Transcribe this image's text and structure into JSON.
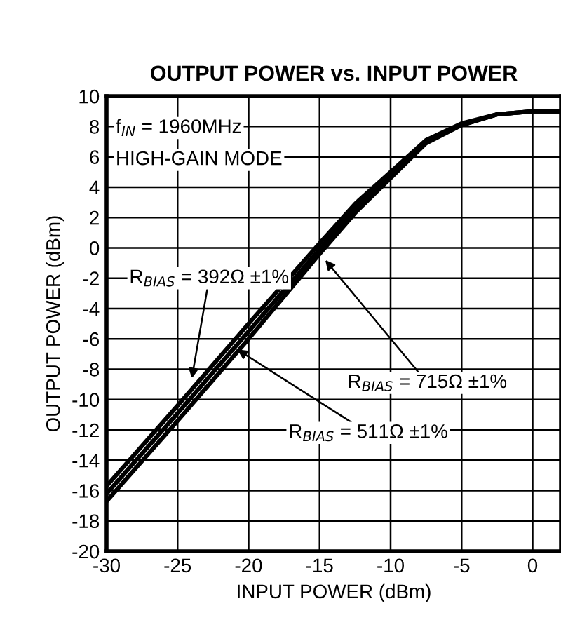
{
  "chart_data": {
    "type": "line",
    "title": "OUTPUT POWER vs. INPUT POWER",
    "xlabel": "INPUT POWER (dBm)",
    "ylabel": "OUTPUT POWER (dBm)",
    "x": [
      -30,
      -25,
      -20,
      -15,
      -12.5,
      -10,
      -7.5,
      -5,
      -2.5,
      0,
      2
    ],
    "series": [
      {
        "color": "#000000",
        "values": [
          -15.7,
          -10.4,
          -5.0,
          0.3,
          2.9,
          5.0,
          7.1,
          8.2,
          8.8,
          9.0,
          9.0
        ]
      },
      {
        "color": "#000000",
        "values": [
          -16.2,
          -10.9,
          -5.5,
          -0.1,
          2.6,
          4.8,
          7.0,
          8.1,
          8.8,
          9.0,
          9.0
        ]
      },
      {
        "color": "#000000",
        "values": [
          -16.7,
          -11.4,
          -6.0,
          -0.4,
          2.3,
          4.6,
          6.9,
          8.1,
          8.8,
          9.0,
          9.0
        ]
      }
    ],
    "xlim": [
      -30,
      2
    ],
    "ylim": [
      -20,
      10
    ],
    "xticks": [
      -30,
      -25,
      -20,
      -15,
      -10,
      -5,
      0
    ],
    "yticks": [
      -20,
      -18,
      -16,
      -14,
      -12,
      -10,
      -8,
      -6,
      -4,
      -2,
      0,
      2,
      4,
      6,
      8,
      10
    ],
    "grid": true,
    "legend": false,
    "marker": "none",
    "line_style": "solid",
    "annotations": [
      "f$_{IN}$ = 1960MHz",
      "HIGH-GAIN MODE",
      {
        "text": "R$_{BIAS}$ = 392Ω ±1%",
        "x": -24,
        "y": -8.6
      },
      {
        "text": "R$_{BIAS}$ = 715Ω ±1%",
        "x": -14.6,
        "y": -0.8
      },
      {
        "text": "R$_{BIAS}$ = 511Ω ±1%",
        "x": -20.8,
        "y": -6.7
      }
    ]
  }
}
